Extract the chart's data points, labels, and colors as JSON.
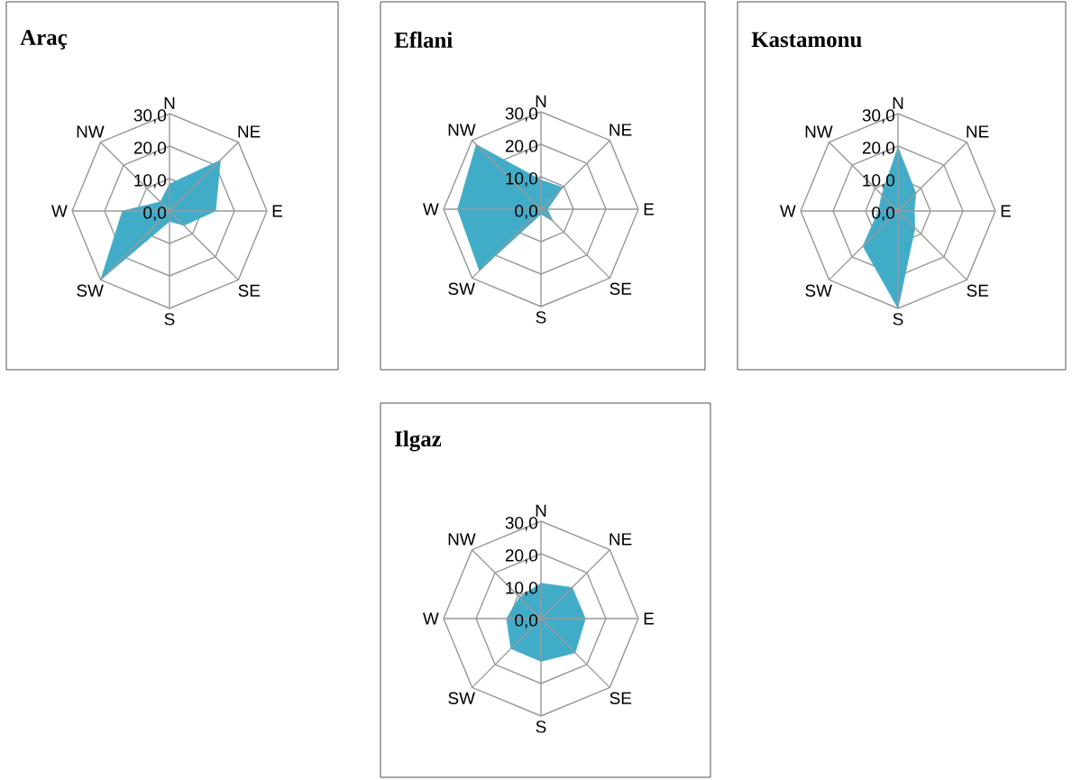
{
  "chart_data": [
    {
      "type": "radar",
      "title": "Araç",
      "categories": [
        "N",
        "NE",
        "E",
        "SE",
        "S",
        "SW",
        "W",
        "NW"
      ],
      "ylim": [
        0,
        30
      ],
      "yticks": [
        {
          "value": 0,
          "label": "0,0"
        },
        {
          "value": 10,
          "label": "10,0"
        },
        {
          "value": 20,
          "label": "20,0"
        },
        {
          "value": 30,
          "label": "30,0"
        }
      ],
      "series": [
        {
          "color": "#41acc8",
          "values": [
            8.3,
            22.2,
            14.2,
            6.3,
            3.2,
            30,
            14.5,
            4
          ]
        }
      ]
    },
    {
      "type": "radar",
      "title": "Eflani",
      "categories": [
        "N",
        "NE",
        "E",
        "SE",
        "S",
        "SW",
        "W",
        "NW"
      ],
      "ylim": [
        0,
        30
      ],
      "yticks": [
        {
          "value": 0,
          "label": "0,0"
        },
        {
          "value": 10,
          "label": "10,0"
        },
        {
          "value": 20,
          "label": "20,0"
        },
        {
          "value": 30,
          "label": "30,0"
        }
      ],
      "series": [
        {
          "color": "#41acc8",
          "values": [
            9,
            9.5,
            2,
            5.3,
            1.5,
            26.8,
            25.7,
            28.2
          ]
        }
      ]
    },
    {
      "type": "radar",
      "title": "Kastamonu",
      "categories": [
        "N",
        "NE",
        "E",
        "SE",
        "S",
        "SW",
        "W",
        "NW"
      ],
      "ylim": [
        0,
        30
      ],
      "yticks": [
        {
          "value": 0,
          "label": "0,0"
        },
        {
          "value": 10,
          "label": "10,0"
        },
        {
          "value": 20,
          "label": "20,0"
        },
        {
          "value": 30,
          "label": "30,0"
        }
      ],
      "series": [
        {
          "color": "#41acc8",
          "values": [
            19.7,
            7.8,
            5,
            7.4,
            30,
            15.3,
            6,
            7.1
          ]
        }
      ]
    },
    {
      "type": "radar",
      "title": "Ilgaz",
      "categories": [
        "N",
        "NE",
        "E",
        "SE",
        "S",
        "SW",
        "W",
        "NW"
      ],
      "ylim": [
        0,
        30
      ],
      "yticks": [
        {
          "value": 0,
          "label": "0,0"
        },
        {
          "value": 10,
          "label": "10,0"
        },
        {
          "value": 20,
          "label": "20,0"
        },
        {
          "value": 30,
          "label": "30,0"
        }
      ],
      "series": [
        {
          "color": "#41acc8",
          "values": [
            10.9,
            13.6,
            13.7,
            14.9,
            13.2,
            13.1,
            10.6,
            9.3
          ]
        }
      ]
    }
  ]
}
